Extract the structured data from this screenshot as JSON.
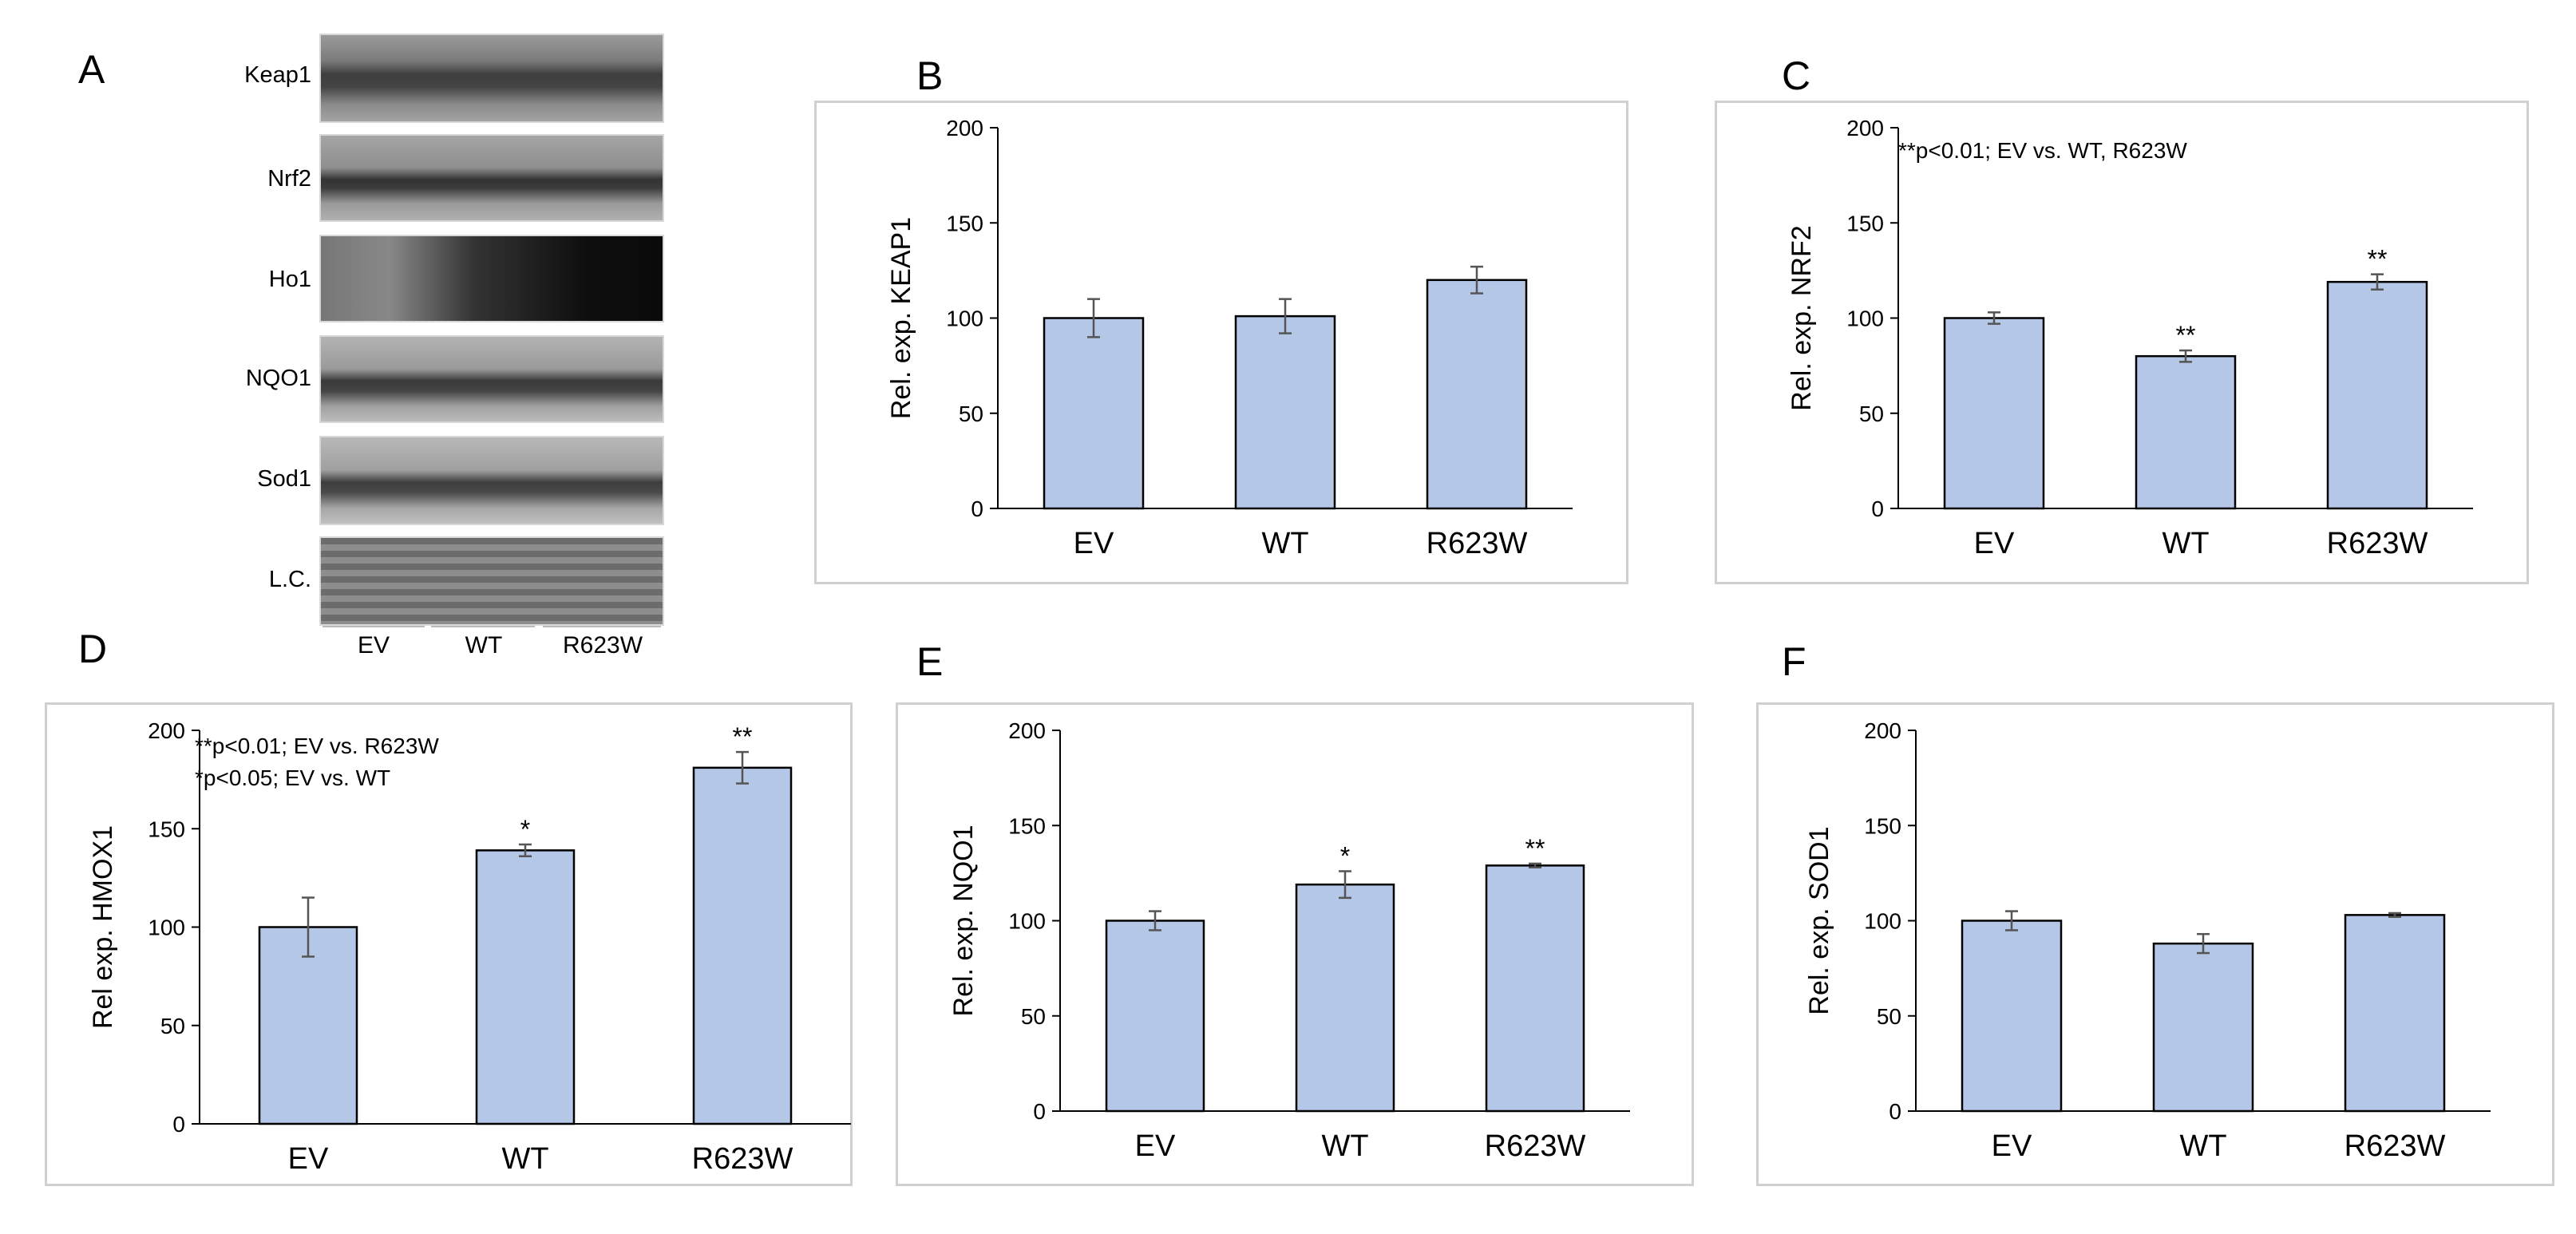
{
  "figure": {
    "panel_letters": [
      "A",
      "B",
      "C",
      "D",
      "E",
      "F"
    ],
    "blot": {
      "bands": [
        "Keap1",
        "Nrf2",
        "Ho1",
        "NQO1",
        "Sod1",
        "L.C."
      ],
      "lanes": [
        "EV",
        "WT",
        "R623W"
      ]
    }
  },
  "chart_data": [
    {
      "panel": "B",
      "type": "bar",
      "categories": [
        "EV",
        "WT",
        "R623W"
      ],
      "values": [
        100,
        101,
        120
      ],
      "errors": [
        10,
        9,
        7
      ],
      "markers": [
        "",
        "",
        ""
      ],
      "ylabel": "Rel. exp. KEAP1",
      "ylim": [
        0,
        200
      ],
      "yticks": [
        "0",
        "50",
        "100",
        "150",
        "200"
      ],
      "annotations": [],
      "bar_color": "#b4c7e7"
    },
    {
      "panel": "C",
      "type": "bar",
      "categories": [
        "EV",
        "WT",
        "R623W"
      ],
      "values": [
        100,
        80,
        119
      ],
      "errors": [
        3,
        3,
        4
      ],
      "markers": [
        "",
        "**",
        "**"
      ],
      "ylabel": "Rel. exp. NRF2",
      "ylim": [
        0,
        200
      ],
      "yticks": [
        "0",
        "50",
        "100",
        "150",
        "200"
      ],
      "annotations": [
        "**p<0.01; EV vs. WT, R623W"
      ],
      "bar_color": "#b4c7e7"
    },
    {
      "panel": "D",
      "type": "bar",
      "categories": [
        "EV",
        "WT",
        "R623W"
      ],
      "values": [
        100,
        139,
        181
      ],
      "errors": [
        15,
        3,
        8
      ],
      "markers": [
        "",
        "*",
        "**"
      ],
      "ylabel": "Rel exp. HMOX1",
      "ylim": [
        0,
        200
      ],
      "yticks": [
        "0",
        "50",
        "100",
        "150",
        "200"
      ],
      "annotations": [
        "**p<0.01; EV vs. R623W",
        "*p<0.05; EV vs. WT"
      ],
      "bar_color": "#b4c7e7"
    },
    {
      "panel": "E",
      "type": "bar",
      "categories": [
        "EV",
        "WT",
        "R623W"
      ],
      "values": [
        100,
        119,
        129
      ],
      "errors": [
        5,
        7,
        1
      ],
      "markers": [
        "",
        "*",
        "**"
      ],
      "ylabel": "Rel. exp. NQO1",
      "ylim": [
        0,
        200
      ],
      "yticks": [
        "0",
        "50",
        "100",
        "150",
        "200"
      ],
      "annotations": [],
      "bar_color": "#b4c7e7"
    },
    {
      "panel": "F",
      "type": "bar",
      "categories": [
        "EV",
        "WT",
        "R623W"
      ],
      "values": [
        100,
        88,
        103
      ],
      "errors": [
        5,
        5,
        1
      ],
      "markers": [
        "",
        "",
        ""
      ],
      "ylabel": "Rel. exp. SOD1",
      "ylim": [
        0,
        200
      ],
      "yticks": [
        "0",
        "50",
        "100",
        "150",
        "200"
      ],
      "annotations": [],
      "bar_color": "#b4c7e7"
    }
  ]
}
